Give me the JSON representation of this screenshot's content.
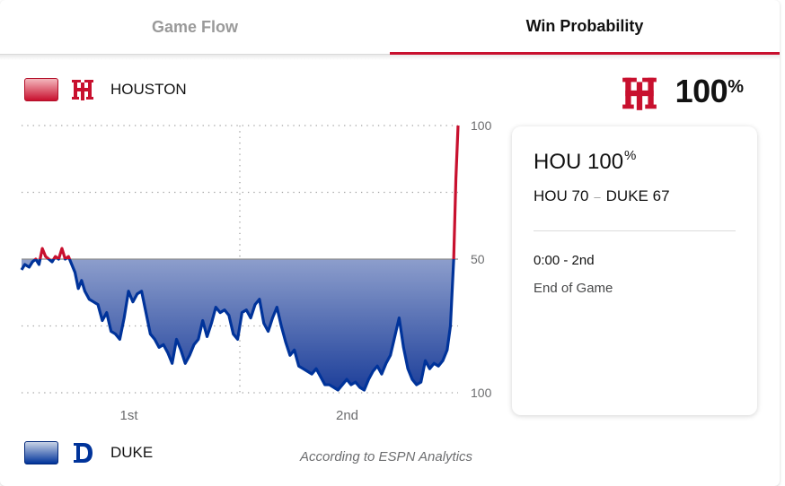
{
  "tabs": [
    {
      "label": "Game Flow",
      "active": false
    },
    {
      "label": "Win Probability",
      "active": true
    }
  ],
  "home_team": {
    "name": "HOUSTON",
    "abbr": "HOU",
    "logo_text": "UH",
    "color": "#c8102e",
    "win_pct": "100",
    "pct_sign": "%",
    "score": "70"
  },
  "away_team": {
    "name": "DUKE",
    "abbr": "DUKE",
    "logo_text": "D",
    "color": "#00339a",
    "score": "67"
  },
  "info_card": {
    "title": "HOU 100",
    "title_pct": "%",
    "score_home": "HOU 70",
    "score_sep": "–",
    "score_away": "DUKE 67",
    "time": "0:00 - 2nd",
    "status": "End of Game"
  },
  "attribution": "According to ESPN Analytics",
  "chart_data": {
    "type": "area",
    "title": "",
    "xlabel": "",
    "ylabel": "",
    "x_tick_labels": [
      "1st",
      "2nd"
    ],
    "y_tick_labels": [
      "100",
      "50",
      "100"
    ],
    "y_axis_meaning": "Houston win probability (%)",
    "ylim": [
      0,
      100
    ],
    "xlim": [
      0,
      40
    ],
    "grid": "dotted",
    "series": [
      {
        "name": "HOU",
        "color": "#c8102e",
        "x": [
          0,
          0.3,
          0.7,
          1.0,
          1.3,
          1.6,
          1.9,
          2.2,
          2.5,
          2.8,
          3.1,
          3.4,
          3.7,
          4.0,
          4.3,
          4.6,
          4.9,
          5.2,
          5.5,
          5.8,
          6.2,
          6.6,
          7.0,
          7.4,
          7.8,
          8.2,
          8.6,
          9.0,
          9.4,
          9.8,
          10.2,
          10.6,
          11.0,
          11.4,
          11.8,
          12.2,
          12.6,
          13.0,
          13.4,
          13.8,
          14.2,
          14.6,
          15.0,
          15.4,
          15.8,
          16.2,
          16.6,
          17.0,
          17.4,
          17.8,
          18.2,
          18.6,
          19.0,
          19.4,
          19.8,
          20.2,
          20.6,
          21.0,
          21.4,
          21.8,
          22.2,
          22.6,
          23.0,
          23.4,
          23.8,
          24.2,
          24.6,
          25.0,
          25.4,
          25.8,
          26.2,
          26.6,
          27.0,
          27.4,
          27.8,
          28.2,
          28.6,
          29.0,
          29.4,
          29.8,
          30.2,
          30.6,
          31.0,
          31.4,
          31.8,
          32.2,
          32.6,
          33.0,
          33.4,
          33.8,
          34.2,
          34.6,
          35.0,
          35.4,
          35.8,
          36.2,
          36.6,
          37.0,
          37.4,
          37.8,
          38.2,
          38.6,
          39.0,
          39.3,
          39.6,
          39.8,
          40.0
        ],
        "y": [
          46,
          48,
          47,
          49,
          50,
          48,
          54,
          51,
          50,
          49,
          51,
          50,
          54,
          50,
          51,
          48,
          45,
          39,
          42,
          38,
          35,
          34,
          33,
          27,
          30,
          23,
          22,
          20,
          28,
          38,
          34,
          37,
          38,
          30,
          22,
          20,
          17,
          18,
          15,
          11,
          20,
          16,
          11,
          14,
          18,
          20,
          27,
          21,
          26,
          32,
          30,
          31,
          29,
          22,
          20,
          30,
          31,
          28,
          33,
          35,
          26,
          23,
          28,
          32,
          25,
          19,
          14,
          16,
          10,
          9,
          8,
          7,
          9,
          6,
          3,
          3,
          2,
          1,
          3,
          5,
          3,
          4,
          2,
          1,
          5,
          8,
          10,
          7,
          11,
          14,
          21,
          28,
          17,
          9,
          5,
          3,
          4,
          12,
          9,
          11,
          10,
          12,
          16,
          25,
          50,
          80,
          100
        ]
      }
    ]
  }
}
